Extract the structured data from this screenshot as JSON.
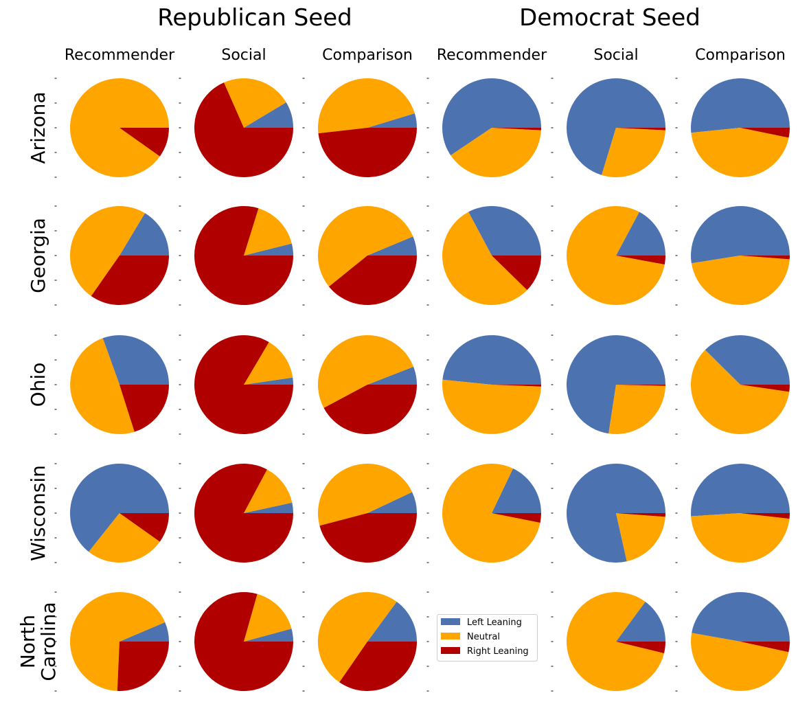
{
  "chart_data": {
    "type": "pie",
    "layout": "grid of pie charts, rows = states, columns = seed x feed type",
    "colors": {
      "Left Leaning": "#4c72b0",
      "Neutral": "#ffa500",
      "Right Leaning": "#b00000"
    },
    "categories": [
      "Left Leaning",
      "Neutral",
      "Right Leaning"
    ],
    "groups": [
      {
        "name": "Republican Seed",
        "columns": [
          "Recommender",
          "Social",
          "Comparison"
        ]
      },
      {
        "name": "Democrat Seed",
        "columns": [
          "Recommender",
          "Social",
          "Comparison"
        ]
      }
    ],
    "rows": [
      "Arizona",
      "Georgia",
      "Ohio",
      "Wisconsin",
      "North Carolina"
    ],
    "cells": [
      [
        {
          "seed": "Republican Seed",
          "feed": "Recommender",
          "values": [
            0,
            90.2,
            9.8
          ]
        },
        {
          "seed": "Republican Seed",
          "feed": "Social",
          "values": [
            8.6,
            23.0,
            68.4
          ]
        },
        {
          "seed": "Republican Seed",
          "feed": "Comparison",
          "values": [
            4.7,
            47.1,
            48.2
          ]
        },
        {
          "seed": "Democrat Seed",
          "feed": "Recommender",
          "values": [
            59.4,
            39.8,
            0.8
          ]
        },
        {
          "seed": "Democrat Seed",
          "feed": "Social",
          "values": [
            70.3,
            28.9,
            0.8
          ]
        },
        {
          "seed": "Democrat Seed",
          "feed": "Comparison",
          "values": [
            51.6,
            45.2,
            3.2
          ]
        }
      ],
      [
        {
          "seed": "Republican Seed",
          "feed": "Recommender",
          "values": [
            16.4,
            48.9,
            34.7
          ]
        },
        {
          "seed": "Republican Seed",
          "feed": "Social",
          "values": [
            3.9,
            16.3,
            79.8
          ]
        },
        {
          "seed": "Republican Seed",
          "feed": "Comparison",
          "values": [
            6.3,
            54.5,
            39.2
          ]
        },
        {
          "seed": "Democrat Seed",
          "feed": "Recommender",
          "values": [
            32.8,
            54.9,
            12.3
          ]
        },
        {
          "seed": "Democrat Seed",
          "feed": "Social",
          "values": [
            17.2,
            79.9,
            2.9
          ]
        },
        {
          "seed": "Democrat Seed",
          "feed": "Comparison",
          "values": [
            52.5,
            46.3,
            1.2
          ]
        }
      ],
      [
        {
          "seed": "Republican Seed",
          "feed": "Recommender",
          "values": [
            30.5,
            49.4,
            20.1
          ]
        },
        {
          "seed": "Republican Seed",
          "feed": "Social",
          "values": [
            2.3,
            14.2,
            83.5
          ]
        },
        {
          "seed": "Republican Seed",
          "feed": "Comparison",
          "values": [
            5.9,
            51.9,
            42.2
          ]
        },
        {
          "seed": "Democrat Seed",
          "feed": "Recommender",
          "values": [
            48.4,
            51.0,
            0.6
          ]
        },
        {
          "seed": "Democrat Seed",
          "feed": "Social",
          "values": [
            72.6,
            27.0,
            0.4
          ]
        },
        {
          "seed": "Democrat Seed",
          "feed": "Comparison",
          "values": [
            37.6,
            60.1,
            2.3
          ]
        }
      ],
      [
        {
          "seed": "Republican Seed",
          "feed": "Recommender",
          "values": [
            64.3,
            25.9,
            9.8
          ]
        },
        {
          "seed": "Republican Seed",
          "feed": "Social",
          "values": [
            3.4,
            13.8,
            82.8
          ]
        },
        {
          "seed": "Republican Seed",
          "feed": "Comparison",
          "values": [
            7.0,
            47.1,
            45.9
          ]
        },
        {
          "seed": "Democrat Seed",
          "feed": "Recommender",
          "values": [
            17.9,
            79.0,
            3.1
          ]
        },
        {
          "seed": "Democrat Seed",
          "feed": "Social",
          "values": [
            78.5,
            20.3,
            1.2
          ]
        },
        {
          "seed": "Democrat Seed",
          "feed": "Comparison",
          "values": [
            51.0,
            47.2,
            1.8
          ]
        }
      ],
      [
        {
          "seed": "Republican Seed",
          "feed": "Recommender",
          "values": [
            6.4,
            67.9,
            25.7
          ]
        },
        {
          "seed": "Republican Seed",
          "feed": "Social",
          "values": [
            4.2,
            16.4,
            79.4
          ]
        },
        {
          "seed": "Republican Seed",
          "feed": "Comparison",
          "values": [
            14.9,
            50.5,
            34.6
          ]
        },
        null,
        {
          "seed": "Democrat Seed",
          "feed": "Social",
          "values": [
            14.9,
            81.3,
            3.8
          ]
        },
        {
          "seed": "Democrat Seed",
          "feed": "Comparison",
          "values": [
            47.2,
            49.4,
            3.4
          ]
        }
      ]
    ],
    "legend": {
      "entries": [
        "Left Leaning",
        "Neutral",
        "Right Leaning"
      ],
      "location": "North Carolina row, Democrat Seed Recommender cell"
    }
  }
}
